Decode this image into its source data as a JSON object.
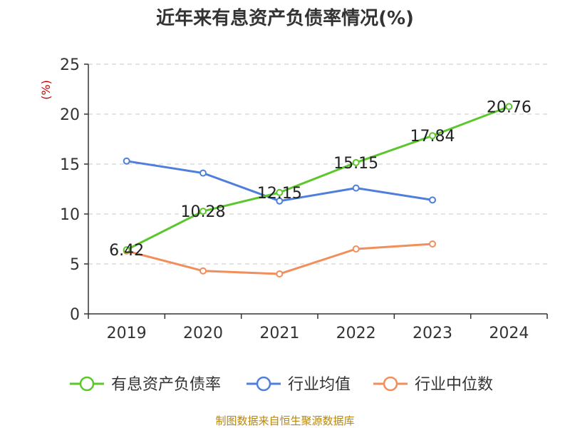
{
  "chart_data": {
    "type": "line",
    "title": "近年来有息资产负债率情况(%)",
    "ylabel": "(%)",
    "categories": [
      "2019",
      "2020",
      "2021",
      "2022",
      "2023",
      "2024"
    ],
    "ylim": [
      0,
      25
    ],
    "yticks": [
      "0",
      "5",
      "10",
      "15",
      "20",
      "25"
    ],
    "grid": true,
    "legend_position": "bottom",
    "series": [
      {
        "name": "有息资产负债率",
        "color": "#5cc72d",
        "values": [
          6.42,
          10.28,
          12.15,
          15.15,
          17.84,
          20.76
        ],
        "labels": [
          "6.42",
          "10.28",
          "12.15",
          "15.15",
          "17.84",
          "20.76"
        ]
      },
      {
        "name": "行业均值",
        "color": "#4f7fdc",
        "values": [
          15.3,
          14.1,
          11.3,
          12.6,
          11.4,
          null
        ]
      },
      {
        "name": "行业中位数",
        "color": "#f28e5b",
        "values": [
          6.3,
          4.3,
          4.0,
          6.5,
          7.0,
          null
        ]
      }
    ],
    "source": "制图数据来自恒生聚源数据库"
  }
}
